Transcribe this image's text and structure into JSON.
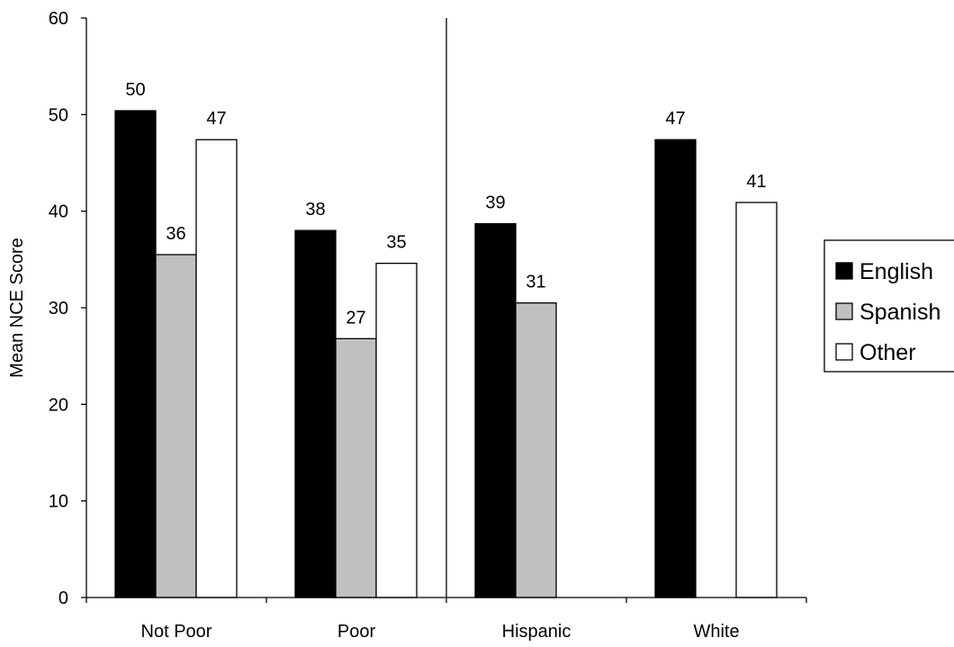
{
  "chart_data": {
    "type": "bar",
    "categories": [
      "Not Poor",
      "Poor",
      "Hispanic",
      "White"
    ],
    "series": [
      {
        "name": "English",
        "color": "#000000",
        "values": [
          50.4,
          38,
          38.7,
          47.4
        ],
        "labels": [
          "50",
          "38",
          "39",
          "47"
        ]
      },
      {
        "name": "Spanish",
        "color": "#c0c0c0",
        "values": [
          35.5,
          26.8,
          30.5,
          null
        ],
        "labels": [
          "36",
          "27",
          "31",
          null
        ]
      },
      {
        "name": "Other",
        "color": "#ffffff",
        "values": [
          47.4,
          34.6,
          null,
          40.9
        ],
        "labels": [
          "47",
          "35",
          null,
          "41"
        ]
      }
    ],
    "title": "",
    "xlabel": "",
    "ylabel": "Mean NCE Score",
    "ylim": [
      0,
      60
    ],
    "yticks": [
      0,
      10,
      20,
      30,
      40,
      50,
      60
    ],
    "grid": false,
    "legend_position": "right",
    "group_divider_after_category": 2
  }
}
